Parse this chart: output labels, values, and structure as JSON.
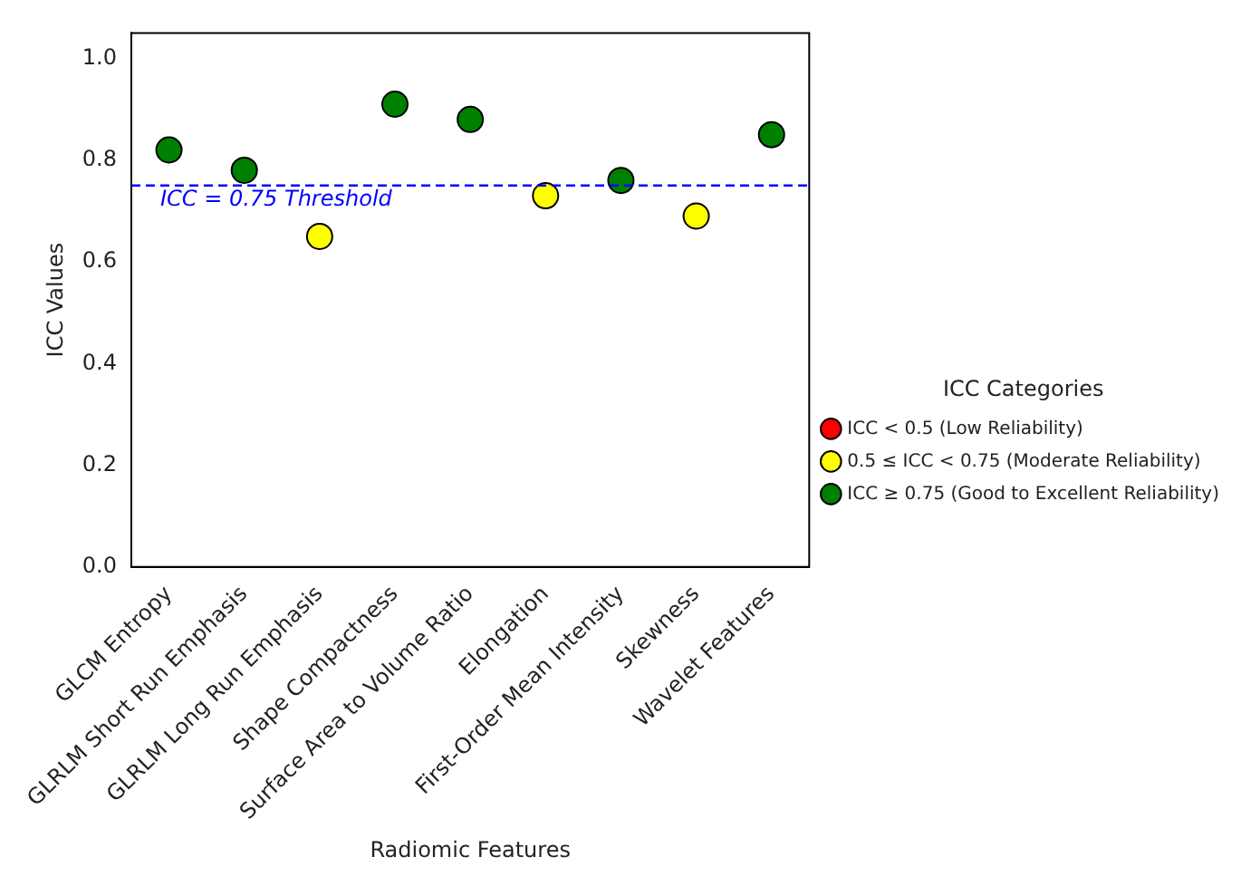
{
  "chart_data": {
    "type": "scatter",
    "xlabel": "Radiomic Features",
    "ylabel": "ICC Values",
    "legend_title": "ICC Categories",
    "legend": "right",
    "categories": [
      "GLCM Entropy",
      "GLRLM Short Run Emphasis",
      "GLRLM Long Run Emphasis",
      "Shape Compactness",
      "Surface Area to Volume Ratio",
      "Elongation",
      "First-Order Mean Intensity",
      "Skewness",
      "Wavelet Features"
    ],
    "series": [
      {
        "name": "ICC < 0.5 (Low Reliability)",
        "color": "#ff0000",
        "values": [
          null,
          null,
          null,
          null,
          null,
          null,
          null,
          null,
          null
        ]
      },
      {
        "name": "0.5 ≤ ICC < 0.75 (Moderate Reliability)",
        "color": "#ffff00",
        "values": [
          null,
          null,
          0.65,
          null,
          null,
          0.73,
          null,
          0.69,
          null
        ]
      },
      {
        "name": "ICC ≥ 0.75 (Good to Excellent Reliability)",
        "color": "#008000",
        "values": [
          0.82,
          0.78,
          null,
          0.91,
          0.88,
          null,
          0.76,
          null,
          0.85
        ]
      }
    ],
    "marker": "circle",
    "ylim": [
      0,
      1.05
    ],
    "yticks": [
      {
        "value": 0,
        "label": "0.0"
      },
      0.2,
      0.4,
      0.6,
      0.8,
      {
        "value": 1,
        "label": "1.0"
      }
    ],
    "ref_lines": [
      {
        "axis": "y",
        "value": 0.75,
        "label": "ICC = 0.75 Threshold",
        "color": "#0000ff",
        "line_style": "dashed"
      }
    ],
    "grid": false
  }
}
